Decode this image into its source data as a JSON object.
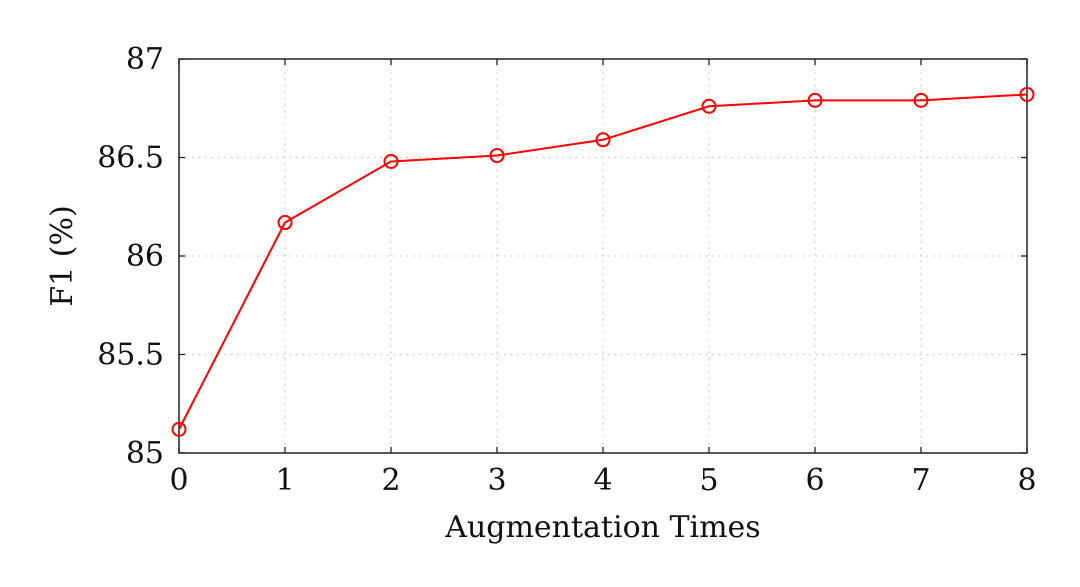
{
  "chart_data": {
    "type": "line",
    "title": "",
    "xlabel": "Augmentation Times",
    "ylabel": "F1 (%)",
    "x": [
      0,
      1,
      2,
      3,
      4,
      5,
      6,
      7,
      8
    ],
    "series": [
      {
        "values": [
          85.12,
          86.17,
          86.48,
          86.51,
          86.59,
          86.76,
          86.79,
          86.79,
          86.82
        ],
        "color": "#ff0000",
        "marker": "open-circle"
      }
    ],
    "xlim": [
      0,
      8
    ],
    "ylim": [
      85,
      87
    ],
    "xticks": [
      "0",
      "1",
      "2",
      "3",
      "4",
      "5",
      "6",
      "7",
      "8"
    ],
    "yticks": [
      "85",
      "85.5",
      "86",
      "86.5",
      "87"
    ],
    "grid": true,
    "grid_style": "dotted"
  }
}
